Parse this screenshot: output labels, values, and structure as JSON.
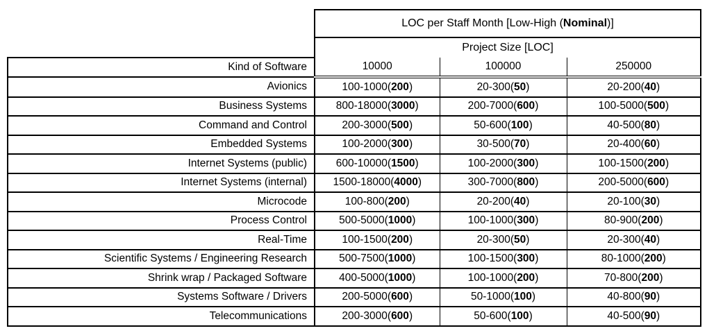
{
  "table": {
    "header": {
      "prefix": "LOC per Staff Month [Low-High (",
      "nominal_bold": "Nominal",
      "suffix": ")]"
    },
    "subheader": "Project Size [LOC]",
    "kind_header": "Kind of Software",
    "size_columns": [
      "10000",
      "100000",
      "250000"
    ],
    "cell_format": {
      "open": "(",
      "close": ")"
    },
    "colors": {
      "border": "#000000",
      "text": "#000000",
      "background": "#ffffff"
    },
    "rows": [
      {
        "kind": "Avionics",
        "cells": [
          {
            "range": "100-1000",
            "nominal": "200"
          },
          {
            "range": "20-300",
            "nominal": "50"
          },
          {
            "range": "20-200",
            "nominal": "40"
          }
        ]
      },
      {
        "kind": "Business Systems",
        "cells": [
          {
            "range": "800-18000",
            "nominal": "3000"
          },
          {
            "range": "200-7000",
            "nominal": "600"
          },
          {
            "range": "100-5000",
            "nominal": "500"
          }
        ]
      },
      {
        "kind": "Command and Control",
        "cells": [
          {
            "range": "200-3000",
            "nominal": "500"
          },
          {
            "range": "50-600",
            "nominal": "100"
          },
          {
            "range": "40-500",
            "nominal": "80"
          }
        ]
      },
      {
        "kind": "Embedded Systems",
        "cells": [
          {
            "range": "100-2000",
            "nominal": "300"
          },
          {
            "range": "30-500",
            "nominal": "70"
          },
          {
            "range": "20-400",
            "nominal": "60"
          }
        ]
      },
      {
        "kind": "Internet Systems (public)",
        "cells": [
          {
            "range": "600-10000",
            "nominal": "1500"
          },
          {
            "range": "100-2000",
            "nominal": "300"
          },
          {
            "range": "100-1500",
            "nominal": "200"
          }
        ]
      },
      {
        "kind": "Internet Systems (internal)",
        "cells": [
          {
            "range": "1500-18000",
            "nominal": "4000"
          },
          {
            "range": "300-7000",
            "nominal": "800"
          },
          {
            "range": "200-5000",
            "nominal": "600"
          }
        ]
      },
      {
        "kind": "Microcode",
        "cells": [
          {
            "range": "100-800",
            "nominal": "200"
          },
          {
            "range": "20-200",
            "nominal": "40"
          },
          {
            "range": "20-100",
            "nominal": "30"
          }
        ]
      },
      {
        "kind": "Process Control",
        "cells": [
          {
            "range": "500-5000",
            "nominal": "1000"
          },
          {
            "range": "100-1000",
            "nominal": "300"
          },
          {
            "range": "80-900",
            "nominal": "200"
          }
        ]
      },
      {
        "kind": "Real-Time",
        "cells": [
          {
            "range": "100-1500",
            "nominal": "200"
          },
          {
            "range": "20-300",
            "nominal": "50"
          },
          {
            "range": "20-300",
            "nominal": "40"
          }
        ]
      },
      {
        "kind": "Scientific Systems / Engineering Research",
        "cells": [
          {
            "range": "500-7500",
            "nominal": "1000"
          },
          {
            "range": "100-1500",
            "nominal": "300"
          },
          {
            "range": "80-1000",
            "nominal": "200"
          }
        ]
      },
      {
        "kind": "Shrink wrap / Packaged Software",
        "cells": [
          {
            "range": "400-5000",
            "nominal": "1000"
          },
          {
            "range": "100-1000",
            "nominal": "200"
          },
          {
            "range": "70-800",
            "nominal": "200"
          }
        ]
      },
      {
        "kind": "Systems Software / Drivers",
        "cells": [
          {
            "range": "200-5000",
            "nominal": "600"
          },
          {
            "range": "50-1000",
            "nominal": "100"
          },
          {
            "range": "40-800",
            "nominal": "90"
          }
        ]
      },
      {
        "kind": "Telecommunications",
        "cells": [
          {
            "range": "200-3000",
            "nominal": "600"
          },
          {
            "range": "50-600",
            "nominal": "100"
          },
          {
            "range": "40-500",
            "nominal": "90"
          }
        ]
      }
    ]
  }
}
